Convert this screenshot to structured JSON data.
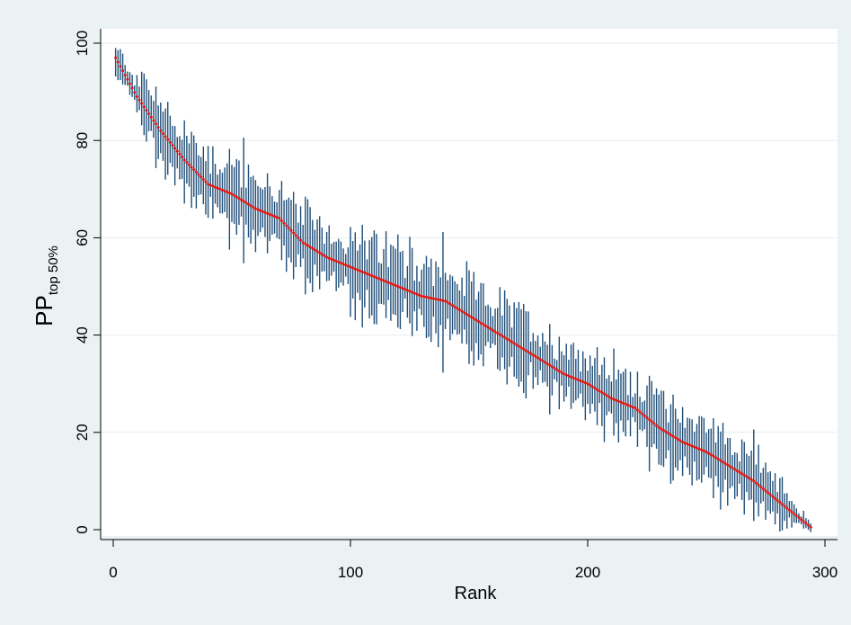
{
  "chart_data": {
    "type": "scatter",
    "title": "",
    "xlabel": "Rank",
    "ylabel": {
      "main": "PP",
      "subscript": "top 50%"
    },
    "xlim": [
      0,
      300
    ],
    "ylim": [
      0,
      100
    ],
    "xticks": [
      0,
      100,
      200,
      300
    ],
    "yticks": [
      0,
      20,
      40,
      60,
      80,
      100
    ],
    "grid": "horizontal",
    "legend": "none",
    "n_points": 294,
    "point_estimate_anchors": [
      {
        "rank": 1,
        "value": 97
      },
      {
        "rank": 10,
        "value": 89
      },
      {
        "rank": 20,
        "value": 82
      },
      {
        "rank": 30,
        "value": 76
      },
      {
        "rank": 40,
        "value": 71
      },
      {
        "rank": 50,
        "value": 69
      },
      {
        "rank": 60,
        "value": 66
      },
      {
        "rank": 70,
        "value": 64
      },
      {
        "rank": 80,
        "value": 59
      },
      {
        "rank": 90,
        "value": 56
      },
      {
        "rank": 100,
        "value": 54
      },
      {
        "rank": 110,
        "value": 52
      },
      {
        "rank": 120,
        "value": 50
      },
      {
        "rank": 130,
        "value": 48
      },
      {
        "rank": 140,
        "value": 47
      },
      {
        "rank": 150,
        "value": 44
      },
      {
        "rank": 160,
        "value": 41
      },
      {
        "rank": 170,
        "value": 38
      },
      {
        "rank": 180,
        "value": 35
      },
      {
        "rank": 190,
        "value": 32
      },
      {
        "rank": 200,
        "value": 30
      },
      {
        "rank": 210,
        "value": 27
      },
      {
        "rank": 220,
        "value": 25
      },
      {
        "rank": 230,
        "value": 21
      },
      {
        "rank": 240,
        "value": 18
      },
      {
        "rank": 250,
        "value": 16
      },
      {
        "rank": 260,
        "value": 13
      },
      {
        "rank": 270,
        "value": 10
      },
      {
        "rank": 280,
        "value": 6
      },
      {
        "rank": 294,
        "value": 0.5
      }
    ],
    "interval_halfwidth_typical": 7,
    "series": [
      {
        "name": "",
        "role": "confidence-interval",
        "color": "#1f4e79"
      },
      {
        "name": "",
        "role": "point-estimate",
        "color": "#e3120b"
      }
    ]
  }
}
